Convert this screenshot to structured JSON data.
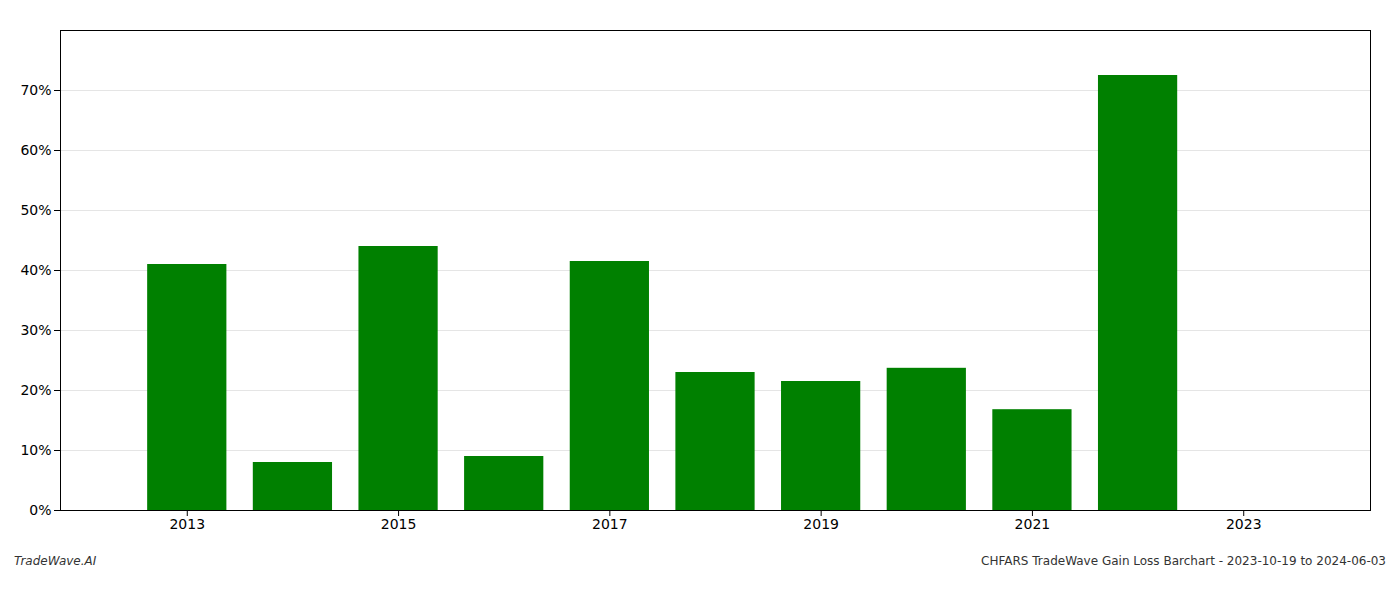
{
  "chart_data": {
    "type": "bar",
    "x": [
      2013,
      2014,
      2015,
      2016,
      2017,
      2018,
      2019,
      2020,
      2021,
      2022
    ],
    "values": [
      0.41,
      0.08,
      0.44,
      0.09,
      0.415,
      0.23,
      0.215,
      0.237,
      0.168,
      0.725
    ],
    "color": "#008000",
    "xlim": [
      2011.8,
      2024.2
    ],
    "xticks": [
      2013,
      2015,
      2017,
      2019,
      2021,
      2023
    ],
    "ylim": [
      0,
      0.8
    ],
    "yticks": [
      {
        "value": 0.0,
        "label": "0%"
      },
      {
        "value": 0.1,
        "label": "10%"
      },
      {
        "value": 0.2,
        "label": "20%"
      },
      {
        "value": 0.3,
        "label": "30%"
      },
      {
        "value": 0.4,
        "label": "40%"
      },
      {
        "value": 0.5,
        "label": "50%"
      },
      {
        "value": 0.6,
        "label": "60%"
      },
      {
        "value": 0.7,
        "label": "70%"
      }
    ],
    "grid": true,
    "annotations": [
      "TradeWave.AI",
      "CHFARS TradeWave Gain Loss Barchart - 2023-10-19 to 2024-06-03"
    ]
  }
}
